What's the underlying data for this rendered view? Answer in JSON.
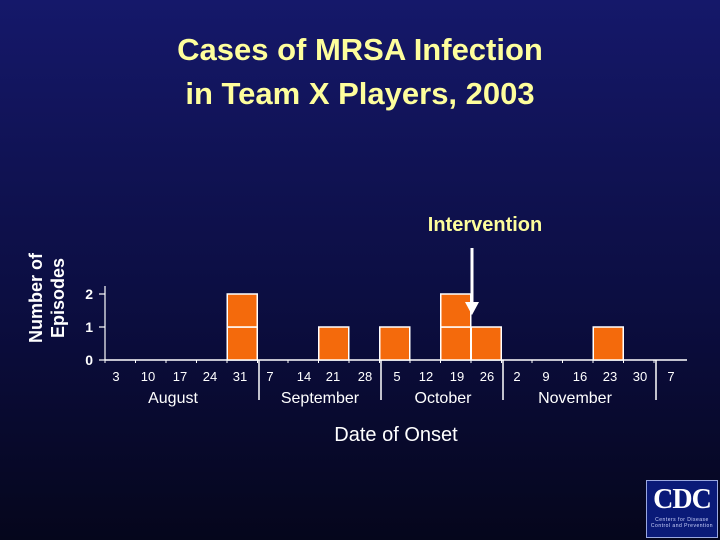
{
  "title": {
    "line1": "Cases of MRSA Infection",
    "line2": "in Team X Players, 2003"
  },
  "logo": {
    "text": "CDC",
    "subtext": "Centers for Disease Control and Prevention"
  },
  "colors": {
    "title": "#fefe9c",
    "text": "#ffffff",
    "bar_fill": "#f46a0c",
    "bar_stroke": "#ffffff",
    "arrow": "#ffffff"
  },
  "chart_data": {
    "type": "bar",
    "xlabel": "Date of Onset",
    "ylabel_lines": [
      "Number of",
      "Episodes"
    ],
    "ylim": [
      0,
      2
    ],
    "yticks": [
      "0",
      "1",
      "2"
    ],
    "grid": false,
    "x_ticks": [
      "3",
      "10",
      "17",
      "24",
      "31",
      "7",
      "14",
      "21",
      "28",
      "5",
      "12",
      "19",
      "26",
      "2",
      "9",
      "16",
      "23",
      "30",
      "7"
    ],
    "months": [
      "August",
      "September",
      "October",
      "November"
    ],
    "categories": [
      "Aug 3",
      "Aug 10",
      "Aug 17",
      "Aug 24",
      "Aug 31",
      "Sep 7",
      "Sep 14",
      "Sep 21",
      "Sep 28",
      "Oct 5",
      "Oct 12",
      "Oct 19",
      "Oct 26",
      "Nov 2",
      "Nov 9",
      "Nov 16",
      "Nov 23",
      "Nov 30"
    ],
    "values": [
      0,
      0,
      0,
      0,
      2,
      0,
      0,
      1,
      0,
      1,
      0,
      2,
      1,
      0,
      0,
      0,
      1,
      0
    ],
    "annotation": {
      "text": "Intervention",
      "category": "Oct 19"
    }
  }
}
